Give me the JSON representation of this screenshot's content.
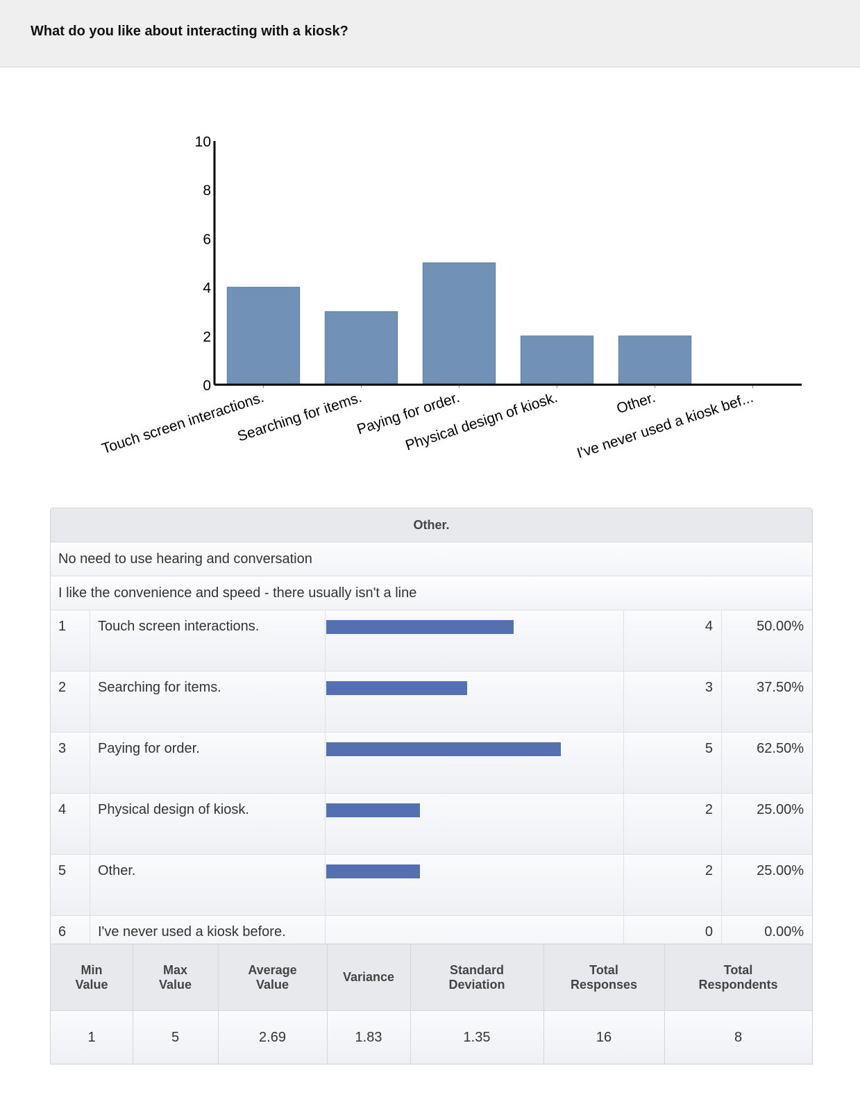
{
  "question": {
    "title": "What do you like about interacting with a kiosk?"
  },
  "chart_data": {
    "type": "bar",
    "categories": [
      "Touch screen interactions.",
      "Searching for items.",
      "Paying for order.",
      "Physical design of kiosk.",
      "Other.",
      "I've never used a kiosk bef..."
    ],
    "values": [
      4,
      3,
      5,
      2,
      2,
      0
    ],
    "yticks": [
      0,
      2,
      4,
      6,
      8,
      10
    ],
    "ylim": [
      0,
      10
    ],
    "bar_color": "#7191b6",
    "grid": false
  },
  "other_text": {
    "header": "Other.",
    "responses": [
      "No need to use hearing and conversation",
      "I like the convenience and speed - there usually isn't a line"
    ]
  },
  "answers": {
    "bar_color": "#5470b0",
    "bar_scale_max": 8,
    "rows": [
      {
        "num": "1",
        "answer": "Touch screen interactions.",
        "count": "4",
        "percent": "50.00%",
        "value": 4
      },
      {
        "num": "2",
        "answer": "Searching for items.",
        "count": "3",
        "percent": "37.50%",
        "value": 3
      },
      {
        "num": "3",
        "answer": "Paying for order.",
        "count": "5",
        "percent": "62.50%",
        "value": 5
      },
      {
        "num": "4",
        "answer": "Physical design of kiosk.",
        "count": "2",
        "percent": "25.00%",
        "value": 2
      },
      {
        "num": "5",
        "answer": "Other.",
        "count": "2",
        "percent": "25.00%",
        "value": 2
      },
      {
        "num": "6",
        "answer": "I've never used a kiosk before.",
        "count": "0",
        "percent": "0.00%",
        "value": 0
      }
    ]
  },
  "stats": {
    "headers": [
      "Min\nValue",
      "Max\nValue",
      "Average\nValue",
      "Variance",
      "Standard\nDeviation",
      "Total\nResponses",
      "Total\nRespondents"
    ],
    "values": [
      "1",
      "5",
      "2.69",
      "1.83",
      "1.35",
      "16",
      "8"
    ]
  }
}
